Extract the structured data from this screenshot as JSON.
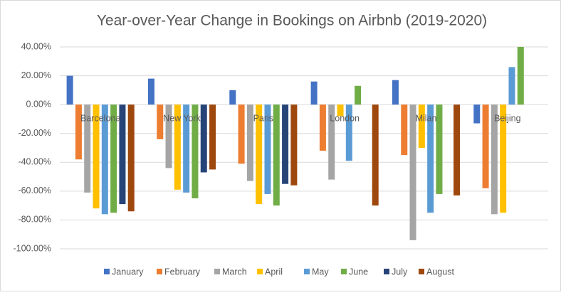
{
  "chart_data": {
    "type": "bar",
    "title": "Year-over-Year Change in Bookings on Airbnb (2019-2020)",
    "categories": [
      "Barcelona",
      "New York",
      "Paris",
      "London",
      "Milan",
      "Beijing"
    ],
    "series": [
      {
        "name": "January",
        "color": "#4472c4",
        "values": [
          20,
          18,
          10,
          16,
          17,
          -13
        ]
      },
      {
        "name": "February",
        "color": "#ed7d31",
        "values": [
          -38,
          -24,
          -41,
          -32,
          -35,
          -58
        ]
      },
      {
        "name": "March",
        "color": "#a5a5a5",
        "values": [
          -61,
          -44,
          -53,
          -52,
          -94,
          -76
        ]
      },
      {
        "name": "April",
        "color": "#ffc000",
        "values": [
          -72,
          -59,
          -69,
          -8,
          -30,
          -75
        ]
      },
      {
        "name": "May",
        "color": "#5b9bd5",
        "values": [
          -76,
          -61,
          -62,
          -39,
          -75,
          26
        ]
      },
      {
        "name": "June",
        "color": "#70ad47",
        "values": [
          -75,
          -65,
          -70,
          13,
          -62,
          40
        ]
      },
      {
        "name": "July",
        "color": "#264478",
        "values": [
          -69,
          -47,
          -55,
          null,
          null,
          null
        ]
      },
      {
        "name": "August",
        "color": "#9e480e",
        "values": [
          -74,
          -45,
          -56,
          -70,
          -63,
          null
        ]
      }
    ],
    "ylim": [
      -100,
      40
    ],
    "yticks": [
      {
        "value": -100,
        "label": "-100.00%"
      },
      {
        "value": -80,
        "label": "-80.00%"
      },
      {
        "value": -60,
        "label": "-60.00%"
      },
      {
        "value": -40,
        "label": "-40.00%"
      },
      {
        "value": -20,
        "label": "-20.00%"
      },
      {
        "value": 0,
        "label": "0.00%"
      },
      {
        "value": 20,
        "label": "20.00%"
      },
      {
        "value": 40,
        "label": "40.00%"
      }
    ],
    "grid": true,
    "legend": "bottom"
  }
}
